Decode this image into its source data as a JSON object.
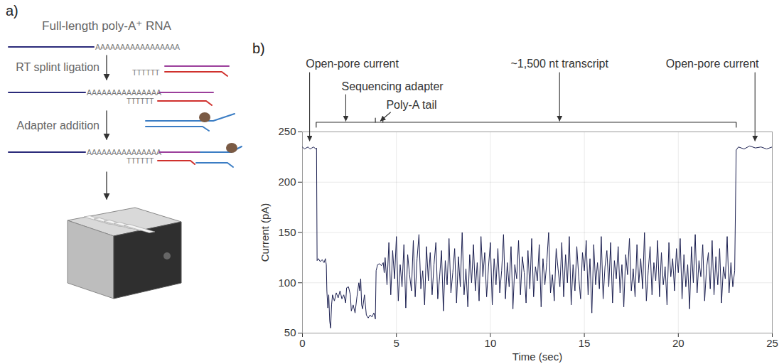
{
  "diagram": {
    "panel_label": "a)",
    "rna_label": "Full-length poly-A⁺ RNA",
    "poly_a": "AAAAAAAAAAAAAAAAA",
    "poly_a_ligated": "AAAAAAAAAAAAAAA",
    "poly_t": "TTTTTT",
    "steps": [
      "RT splint ligation",
      "Adapter addition"
    ]
  },
  "chart_data": {
    "type": "line",
    "panel_label": "b)",
    "color": "#1c2051",
    "xlabel": "Time (sec)",
    "ylabel": "Current (pA)",
    "xlim": [
      0,
      25
    ],
    "ylim": [
      50,
      250
    ],
    "xticks": [
      0,
      5,
      10,
      15,
      20,
      25
    ],
    "yticks": [
      50,
      100,
      150,
      200,
      250
    ],
    "grid": true,
    "x": [
      0,
      0.1,
      0.2,
      0.3,
      0.4,
      0.5,
      0.6,
      0.7,
      0.75,
      0.78,
      0.85,
      0.95,
      1.05,
      1.15,
      1.22,
      1.27,
      1.3,
      1.35,
      1.4,
      1.45,
      1.5,
      1.55,
      1.6,
      1.7,
      1.8,
      1.9,
      2.0,
      2.1,
      2.2,
      2.3,
      2.35,
      2.45,
      2.55,
      2.6,
      2.7,
      2.8,
      2.9,
      3.0,
      3.05,
      3.1,
      3.15,
      3.2,
      3.3,
      3.4,
      3.5,
      3.6,
      3.7,
      3.8,
      3.88,
      3.92,
      4.0,
      4.1,
      4.2,
      4.3,
      4.35,
      4.4,
      4.5,
      4.6,
      4.7,
      4.8,
      4.9,
      5.0,
      5.1,
      5.2,
      5.3,
      5.4,
      5.5,
      5.6,
      5.7,
      5.8,
      5.9,
      6.0,
      6.1,
      6.2,
      6.3,
      6.4,
      6.5,
      6.6,
      6.7,
      6.8,
      6.9,
      7.0,
      7.1,
      7.2,
      7.3,
      7.4,
      7.5,
      7.6,
      7.7,
      7.8,
      7.9,
      8.0,
      8.1,
      8.2,
      8.3,
      8.4,
      8.5,
      8.6,
      8.7,
      8.8,
      8.9,
      9.0,
      9.1,
      9.2,
      9.3,
      9.4,
      9.5,
      9.6,
      9.7,
      9.8,
      9.9,
      10.0,
      10.1,
      10.2,
      10.3,
      10.4,
      10.5,
      10.6,
      10.7,
      10.8,
      10.9,
      11.0,
      11.1,
      11.2,
      11.3,
      11.4,
      11.5,
      11.6,
      11.7,
      11.8,
      11.9,
      12.0,
      12.1,
      12.2,
      12.3,
      12.4,
      12.5,
      12.6,
      12.7,
      12.8,
      12.9,
      13.0,
      13.1,
      13.2,
      13.3,
      13.4,
      13.5,
      13.6,
      13.7,
      13.8,
      13.9,
      14.0,
      14.1,
      14.2,
      14.3,
      14.4,
      14.5,
      14.6,
      14.7,
      14.8,
      14.9,
      15.0,
      15.1,
      15.2,
      15.3,
      15.4,
      15.5,
      15.6,
      15.7,
      15.8,
      15.9,
      16.0,
      16.1,
      16.2,
      16.3,
      16.4,
      16.5,
      16.6,
      16.7,
      16.8,
      16.9,
      17.0,
      17.1,
      17.2,
      17.3,
      17.4,
      17.5,
      17.6,
      17.7,
      17.8,
      17.9,
      18.0,
      18.1,
      18.2,
      18.3,
      18.4,
      18.5,
      18.6,
      18.7,
      18.8,
      18.9,
      19.0,
      19.1,
      19.2,
      19.3,
      19.4,
      19.5,
      19.6,
      19.7,
      19.8,
      19.9,
      20.0,
      20.1,
      20.2,
      20.3,
      20.4,
      20.5,
      20.6,
      20.7,
      20.8,
      20.9,
      21.0,
      21.1,
      21.2,
      21.3,
      21.4,
      21.5,
      21.6,
      21.7,
      21.8,
      21.9,
      22.0,
      22.1,
      22.2,
      22.3,
      22.4,
      22.5,
      22.6,
      22.7,
      22.8,
      22.9,
      23.0,
      23.08,
      23.2,
      23.5,
      23.8,
      24.1,
      24.4,
      24.7,
      25
    ],
    "values": [
      235,
      233,
      234,
      235,
      233,
      234,
      235,
      233,
      234,
      122,
      124,
      121,
      123,
      120,
      124,
      118,
      92,
      75,
      88,
      62,
      55,
      78,
      88,
      82,
      90,
      85,
      92,
      84,
      88,
      80,
      95,
      96,
      88,
      72,
      78,
      70,
      86,
      100,
      92,
      104,
      78,
      74,
      88,
      68,
      65,
      68,
      66,
      70,
      64,
      112,
      118,
      119,
      117,
      120,
      110,
      125,
      98,
      140,
      88,
      132,
      104,
      146,
      82,
      118,
      96,
      138,
      75,
      128,
      108,
      92,
      142,
      86,
      124,
      148,
      94,
      112,
      78,
      136,
      102,
      130,
      88,
      118,
      140,
      84,
      106,
      132,
      72,
      122,
      98,
      144,
      90,
      110,
      134,
      80,
      126,
      96,
      150,
      88,
      114,
      76,
      128,
      100,
      138,
      92,
      120,
      82,
      146,
      106,
      130,
      86,
      116,
      140,
      78,
      124,
      98,
      134,
      90,
      112,
      148,
      84,
      120,
      96,
      136,
      74,
      118,
      104,
      142,
      88,
      126,
      110,
      80,
      132,
      94,
      144,
      86,
      116,
      102,
      138,
      76,
      124,
      98,
      120,
      150,
      90,
      108,
      82,
      134,
      114,
      96,
      140,
      86,
      128,
      100,
      146,
      78,
      118,
      92,
      136,
      106,
      84,
      130,
      112,
      142,
      88,
      124,
      70,
      138,
      98,
      120,
      94,
      146,
      84,
      116,
      132,
      96,
      140,
      80,
      122,
      104,
      136,
      90,
      118,
      76,
      128,
      108,
      144,
      92,
      114,
      86,
      138,
      100,
      124,
      94,
      150,
      82,
      112,
      136,
      88,
      120,
      102,
      142,
      86,
      130,
      98,
      116,
      78,
      140,
      106,
      124,
      92,
      134,
      110,
      144,
      84,
      128,
      96,
      118,
      74,
      136,
      100,
      148,
      90,
      122,
      106,
      138,
      82,
      114,
      130,
      94,
      142,
      88,
      126,
      98,
      134,
      80,
      116,
      104,
      146,
      90,
      120,
      96,
      112,
      232,
      235,
      233,
      236,
      234,
      235,
      233,
      235
    ],
    "segments": [
      {
        "name": "Sequencing adapter",
        "start": 0.75,
        "end": 3.9
      },
      {
        "name": "Poly-A tail",
        "start": 3.9,
        "end": 4.3
      },
      {
        "name": "~1,500 nt transcript",
        "start": 4.3,
        "end": 23.1
      }
    ],
    "annotations": [
      {
        "text": "Open-pore current",
        "x": 0.4
      },
      {
        "text": "Open-pore current",
        "x": 24.1
      }
    ]
  }
}
